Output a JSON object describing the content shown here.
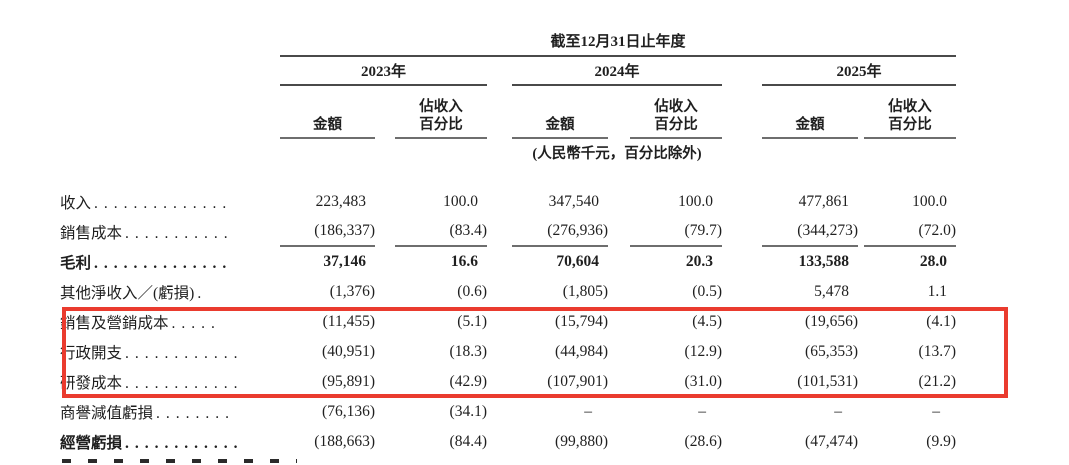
{
  "table": {
    "period_header": "截至12月31日止年度",
    "year_groups": [
      "2023年",
      "2024年",
      "2025年"
    ],
    "amount_header": "金額",
    "pct_header_line1": "佔收入",
    "pct_header_line2": "百分比",
    "unit_note": "(人民幣千元，百分比除外)",
    "rows": [
      {
        "label": "收入",
        "dots": "..............",
        "v": [
          "223,483",
          "100.0",
          "347,540",
          "100.0",
          "477,861",
          "100.0"
        ]
      },
      {
        "label": "銷售成本",
        "dots": "...........",
        "v": [
          "(186,337)",
          "(83.4)",
          "(276,936)",
          "(79.7)",
          "(344,273)",
          "(72.0)"
        ]
      },
      {
        "label": "毛利",
        "dots": "..............",
        "v": [
          "37,146",
          "16.6",
          "70,604",
          "20.3",
          "133,588",
          "28.0"
        ]
      },
      {
        "label": "其他淨收入／(虧損)",
        "dots": ".",
        "v": [
          "(1,376)",
          "(0.6)",
          "(1,805)",
          "(0.5)",
          "5,478",
          "1.1"
        ]
      },
      {
        "label": "銷售及營銷成本",
        "dots": ".....",
        "v": [
          "(11,455)",
          "(5.1)",
          "(15,794)",
          "(4.5)",
          "(19,656)",
          "(4.1)"
        ]
      },
      {
        "label": "行政開支",
        "dots": "............",
        "v": [
          "(40,951)",
          "(18.3)",
          "(44,984)",
          "(12.9)",
          "(65,353)",
          "(13.7)"
        ]
      },
      {
        "label": "研發成本",
        "dots": "............",
        "v": [
          "(95,891)",
          "(42.9)",
          "(107,901)",
          "(31.0)",
          "(101,531)",
          "(21.2)"
        ]
      },
      {
        "label": "商譽減值虧損",
        "dots": "........",
        "v": [
          "(76,136)",
          "(34.1)",
          "–",
          "–",
          "–",
          "–"
        ]
      },
      {
        "label": "經營虧損",
        "dots": "............",
        "v": [
          "(188,663)",
          "(84.4)",
          "(99,880)",
          "(28.6)",
          "(47,474)",
          "(9.9)"
        ]
      }
    ]
  },
  "highlight_box": {
    "color": "#ea3b2e",
    "highlighted_rows": [
      "銷售及營銷成本",
      "行政開支",
      "研發成本"
    ]
  }
}
